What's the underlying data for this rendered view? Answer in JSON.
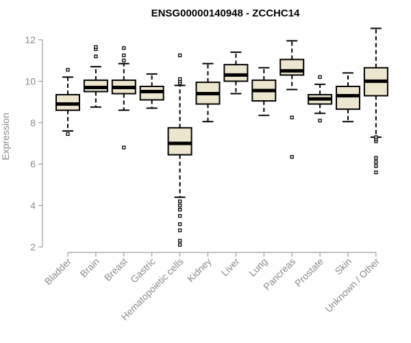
{
  "chart_data": {
    "type": "boxplot",
    "title": "ENSG00000140948 - ZCCHC14",
    "ylabel": "Expression",
    "xlabel": "",
    "ylim": [
      2,
      12.6
    ],
    "yticks": [
      2,
      4,
      6,
      8,
      10,
      12
    ],
    "colors": {
      "box_fill": "#ede6cf",
      "stroke": "#000000",
      "axis": "#8a8a8a"
    },
    "categories": [
      "Bladder",
      "Brain",
      "Breast",
      "Gastric",
      "Hematopoietic cells",
      "Kidney",
      "Liver",
      "Lung",
      "Pancreas",
      "Prostate",
      "Skin",
      "Unknown / Other"
    ],
    "boxes": [
      {
        "category": "Bladder",
        "whisker_low": 7.6,
        "q1": 8.6,
        "median": 8.9,
        "q3": 9.35,
        "whisker_high": 10.2,
        "outliers": [
          7.45,
          10.55
        ]
      },
      {
        "category": "Brain",
        "whisker_low": 8.75,
        "q1": 9.5,
        "median": 9.7,
        "q3": 10.05,
        "whisker_high": 10.7,
        "outliers": [
          11.2,
          11.55,
          11.65
        ]
      },
      {
        "category": "Breast",
        "whisker_low": 8.6,
        "q1": 9.4,
        "median": 9.7,
        "q3": 10.05,
        "whisker_high": 10.85,
        "outliers": [
          6.8,
          11.0,
          11.25,
          11.6
        ]
      },
      {
        "category": "Gastric",
        "whisker_low": 8.7,
        "q1": 9.1,
        "median": 9.5,
        "q3": 9.75,
        "whisker_high": 10.35,
        "outliers": []
      },
      {
        "category": "Hematopoietic cells",
        "whisker_low": 4.4,
        "q1": 6.45,
        "median": 7.0,
        "q3": 7.75,
        "whisker_high": 9.8,
        "outliers": [
          2.1,
          2.3,
          2.8,
          3.1,
          3.5,
          3.8,
          4.0,
          4.2,
          9.9,
          10.0,
          10.1,
          11.25
        ]
      },
      {
        "category": "Kidney",
        "whisker_low": 8.05,
        "q1": 8.9,
        "median": 9.4,
        "q3": 9.95,
        "whisker_high": 10.85,
        "outliers": []
      },
      {
        "category": "Liver",
        "whisker_low": 9.4,
        "q1": 10.0,
        "median": 10.3,
        "q3": 10.8,
        "whisker_high": 11.4,
        "outliers": []
      },
      {
        "category": "Lung",
        "whisker_low": 8.35,
        "q1": 9.05,
        "median": 9.55,
        "q3": 10.05,
        "whisker_high": 10.65,
        "outliers": []
      },
      {
        "category": "Pancreas",
        "whisker_low": 9.6,
        "q1": 10.3,
        "median": 10.5,
        "q3": 11.05,
        "whisker_high": 11.95,
        "outliers": [
          6.35,
          8.25
        ]
      },
      {
        "category": "Prostate",
        "whisker_low": 8.45,
        "q1": 8.9,
        "median": 9.15,
        "q3": 9.35,
        "whisker_high": 9.85,
        "outliers": [
          8.1,
          10.2
        ]
      },
      {
        "category": "Skin",
        "whisker_low": 8.05,
        "q1": 8.65,
        "median": 9.3,
        "q3": 9.75,
        "whisker_high": 10.4,
        "outliers": []
      },
      {
        "category": "Unknown / Other",
        "whisker_low": 7.3,
        "q1": 9.3,
        "median": 10.0,
        "q3": 10.65,
        "whisker_high": 12.55,
        "outliers": [
          5.6,
          5.9,
          6.1,
          6.3,
          7.1,
          7.2,
          7.3
        ]
      }
    ]
  }
}
